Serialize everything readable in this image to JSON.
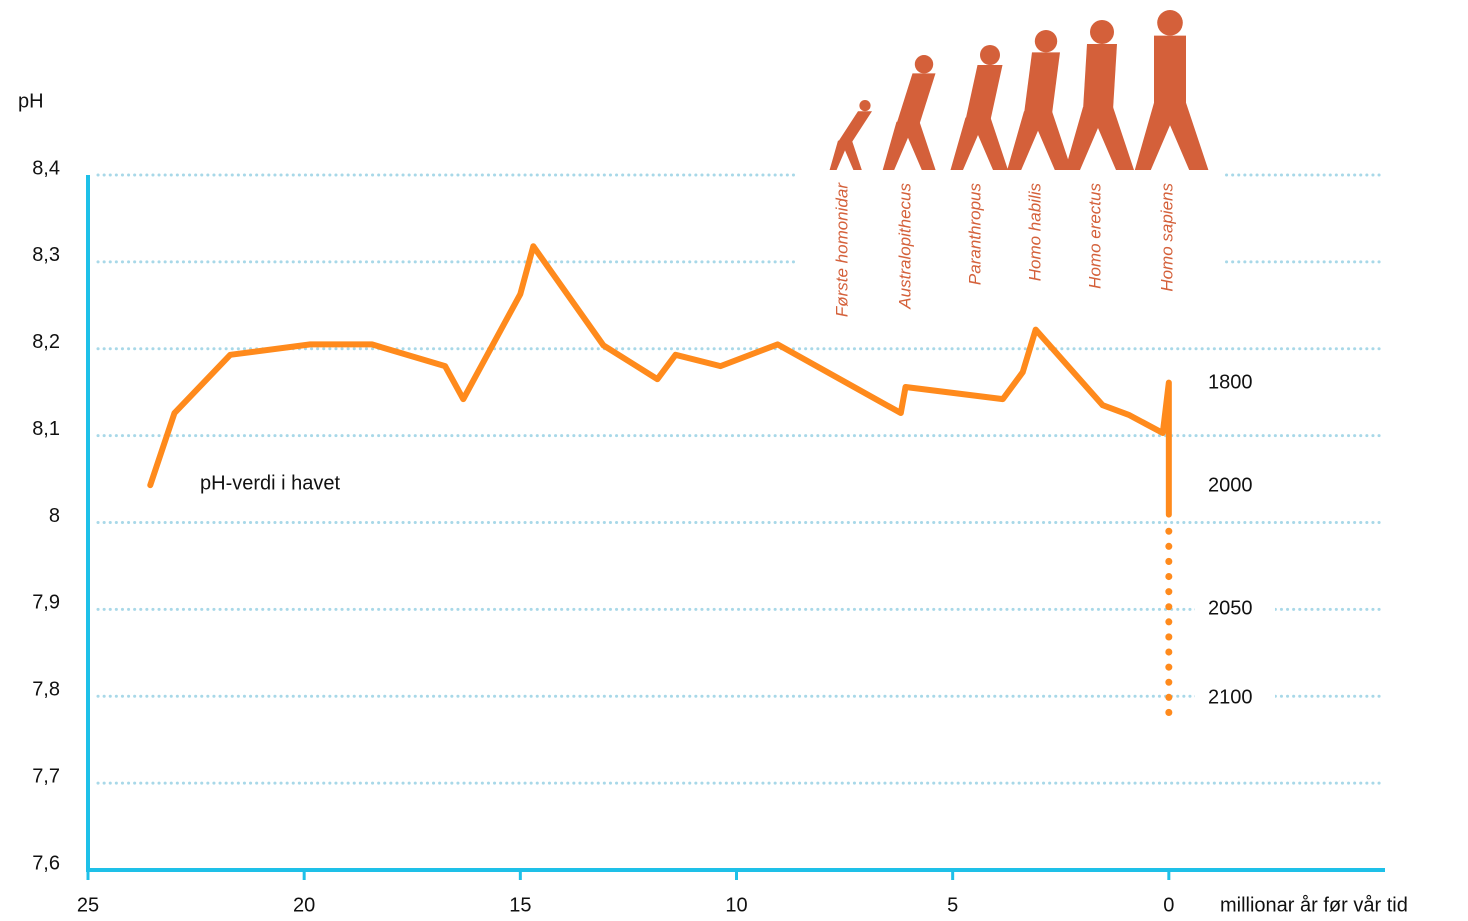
{
  "chart_data": {
    "type": "line",
    "y_label": "pH",
    "x_label": "millionar år før vår tid",
    "xlim": [
      25,
      -5
    ],
    "xticks": [
      25,
      20,
      15,
      10,
      5,
      0
    ],
    "ylim": [
      7.6,
      8.4
    ],
    "yticks": [
      {
        "value": 8.4,
        "label": "8,4"
      },
      {
        "value": 8.3,
        "label": "8,3"
      },
      {
        "value": 8.2,
        "label": "8,2"
      },
      {
        "value": 8.1,
        "label": "8,1"
      },
      8,
      {
        "value": 7.9,
        "label": "7,9"
      },
      {
        "value": 7.8,
        "label": "7,8"
      },
      {
        "value": 7.7,
        "label": "7,7"
      },
      {
        "value": 7.6,
        "label": "7,6"
      }
    ],
    "grid": true,
    "axis_color": "#1ec0e8",
    "series": [
      {
        "name": "pH-verdi i havet",
        "color": "#ff8a1c",
        "style": "solid",
        "x": [
          23.56,
          23.0,
          21.71,
          19.86,
          18.43,
          16.74,
          16.32,
          15.0,
          14.7,
          13.08,
          11.83,
          11.41,
          10.37,
          9.05,
          6.2,
          6.09,
          3.84,
          3.38,
          3.08,
          1.53,
          0.93,
          0.14,
          0,
          0
        ],
        "values": [
          8.043,
          8.126,
          8.193,
          8.205,
          8.205,
          8.18,
          8.142,
          8.263,
          8.318,
          8.204,
          8.165,
          8.193,
          8.18,
          8.205,
          8.126,
          8.156,
          8.142,
          8.173,
          8.222,
          8.135,
          8.124,
          8.103,
          8.161,
          8.009
        ]
      },
      {
        "color": "#ff8a1c",
        "style": "dotted",
        "x": [
          0,
          0
        ],
        "values": [
          7.99,
          7.78
        ]
      }
    ],
    "year_labels": [
      "1800",
      "2000",
      "2050",
      "2100"
    ],
    "hominids": [
      "Første homonidar",
      "Australopithecus",
      "Paranthropus",
      "Homo habilis",
      "Homo erectus",
      "Homo sapiens"
    ]
  }
}
